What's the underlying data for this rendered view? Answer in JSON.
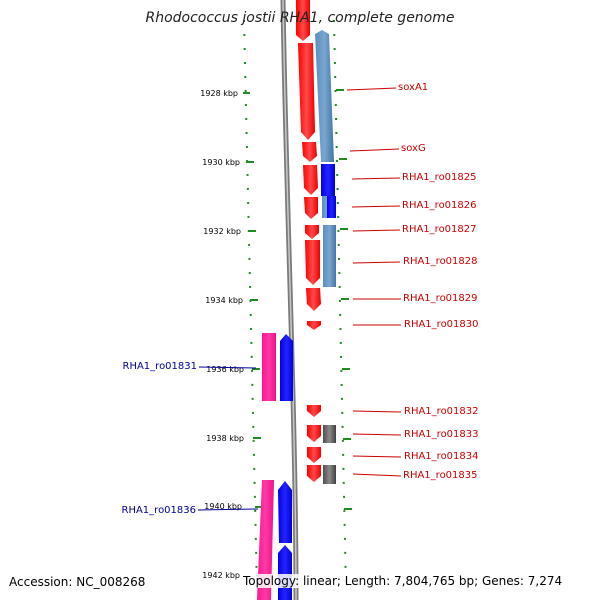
{
  "title": "Rhodococcus jostii RHA1, complete genome",
  "accession_label": "Accession: NC_008268",
  "summary": "Topology: linear; Length: 7,804,765 bp; Genes: 7,274",
  "colors": {
    "cds_red": "#ff0000",
    "cds_blue": "#0000ff",
    "match_steelblue": "#4682b4",
    "rrna_pink": "#ff1493",
    "gray_feature": "#606060",
    "backbone": "#808080",
    "tick_green": "#228b22",
    "label_red": "#cc0000",
    "label_blue": "#000099"
  },
  "axis": {
    "unit": "kbp",
    "ticks": [
      {
        "label": "1928 kbp",
        "value": 1928
      },
      {
        "label": "1930 kbp",
        "value": 1930
      },
      {
        "label": "1932 kbp",
        "value": 1932
      },
      {
        "label": "1934 kbp",
        "value": 1934
      },
      {
        "label": "1936 kbp",
        "value": 1936
      },
      {
        "label": "1938 kbp",
        "value": 1938
      },
      {
        "label": "1940 kbp",
        "value": 1940
      },
      {
        "label": "1942 kbp",
        "value": 1942
      }
    ]
  },
  "labels_right": [
    "soxA1",
    "soxG",
    "RHA1_ro01825",
    "RHA1_ro01826",
    "RHA1_ro01827",
    "RHA1_ro01828",
    "RHA1_ro01829",
    "RHA1_ro01830",
    "RHA1_ro01832",
    "RHA1_ro01833",
    "RHA1_ro01834",
    "RHA1_ro01835"
  ],
  "labels_left": [
    "RHA1_ro01831",
    "RHA1_ro01836"
  ]
}
